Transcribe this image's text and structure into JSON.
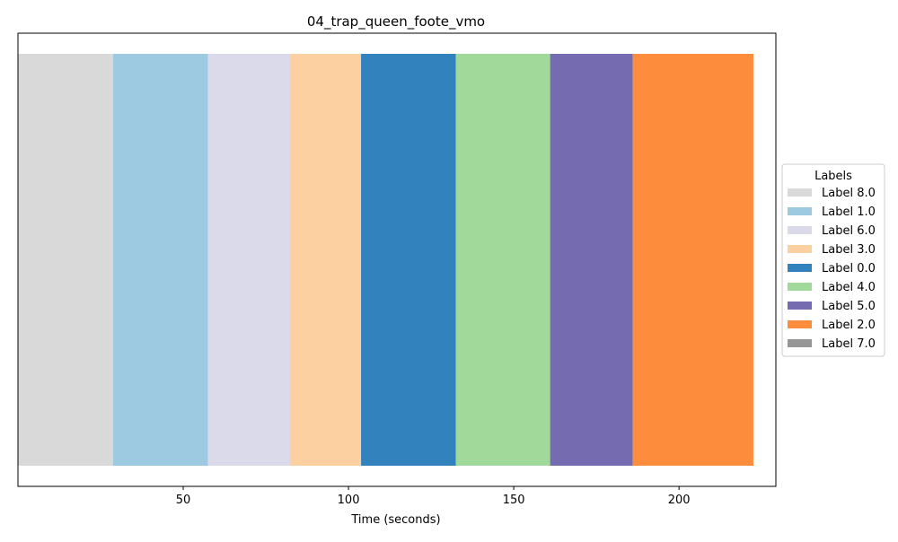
{
  "chart_data": {
    "type": "bar",
    "orientation": "horizontal-timeline",
    "title": "04_trap_queen_foote_vmo",
    "xlabel": "Time (seconds)",
    "ylabel": "",
    "xlim": [
      0,
      229.3
    ],
    "x_ticks": [
      50,
      100,
      150,
      200
    ],
    "grid": false,
    "legend_title": "Labels",
    "legend_position": "center-right",
    "segments": [
      {
        "label": "Label 8.0",
        "start": 0.0,
        "end": 28.8,
        "color": "#d9d9d9"
      },
      {
        "label": "Label 1.0",
        "start": 28.8,
        "end": 57.5,
        "color": "#9ecae1"
      },
      {
        "label": "Label 6.0",
        "start": 57.5,
        "end": 82.3,
        "color": "#dadaeb"
      },
      {
        "label": "Label 3.0",
        "start": 82.3,
        "end": 103.8,
        "color": "#fdd0a2"
      },
      {
        "label": "Label 0.0",
        "start": 103.8,
        "end": 132.5,
        "color": "#3182bd"
      },
      {
        "label": "Label 4.0",
        "start": 132.5,
        "end": 161.0,
        "color": "#a1d99b"
      },
      {
        "label": "Label 5.0",
        "start": 161.0,
        "end": 186.0,
        "color": "#756bb1"
      },
      {
        "label": "Label 2.0",
        "start": 186.0,
        "end": 222.5,
        "color": "#fd8d3c"
      }
    ],
    "legend": [
      {
        "label": "Label 8.0",
        "color": "#d9d9d9"
      },
      {
        "label": "Label 1.0",
        "color": "#9ecae1"
      },
      {
        "label": "Label 6.0",
        "color": "#dadaeb"
      },
      {
        "label": "Label 3.0",
        "color": "#fdd0a2"
      },
      {
        "label": "Label 0.0",
        "color": "#3182bd"
      },
      {
        "label": "Label 4.0",
        "color": "#a1d99b"
      },
      {
        "label": "Label 5.0",
        "color": "#756bb1"
      },
      {
        "label": "Label 2.0",
        "color": "#fd8d3c"
      },
      {
        "label": "Label 7.0",
        "color": "#969696"
      }
    ]
  }
}
